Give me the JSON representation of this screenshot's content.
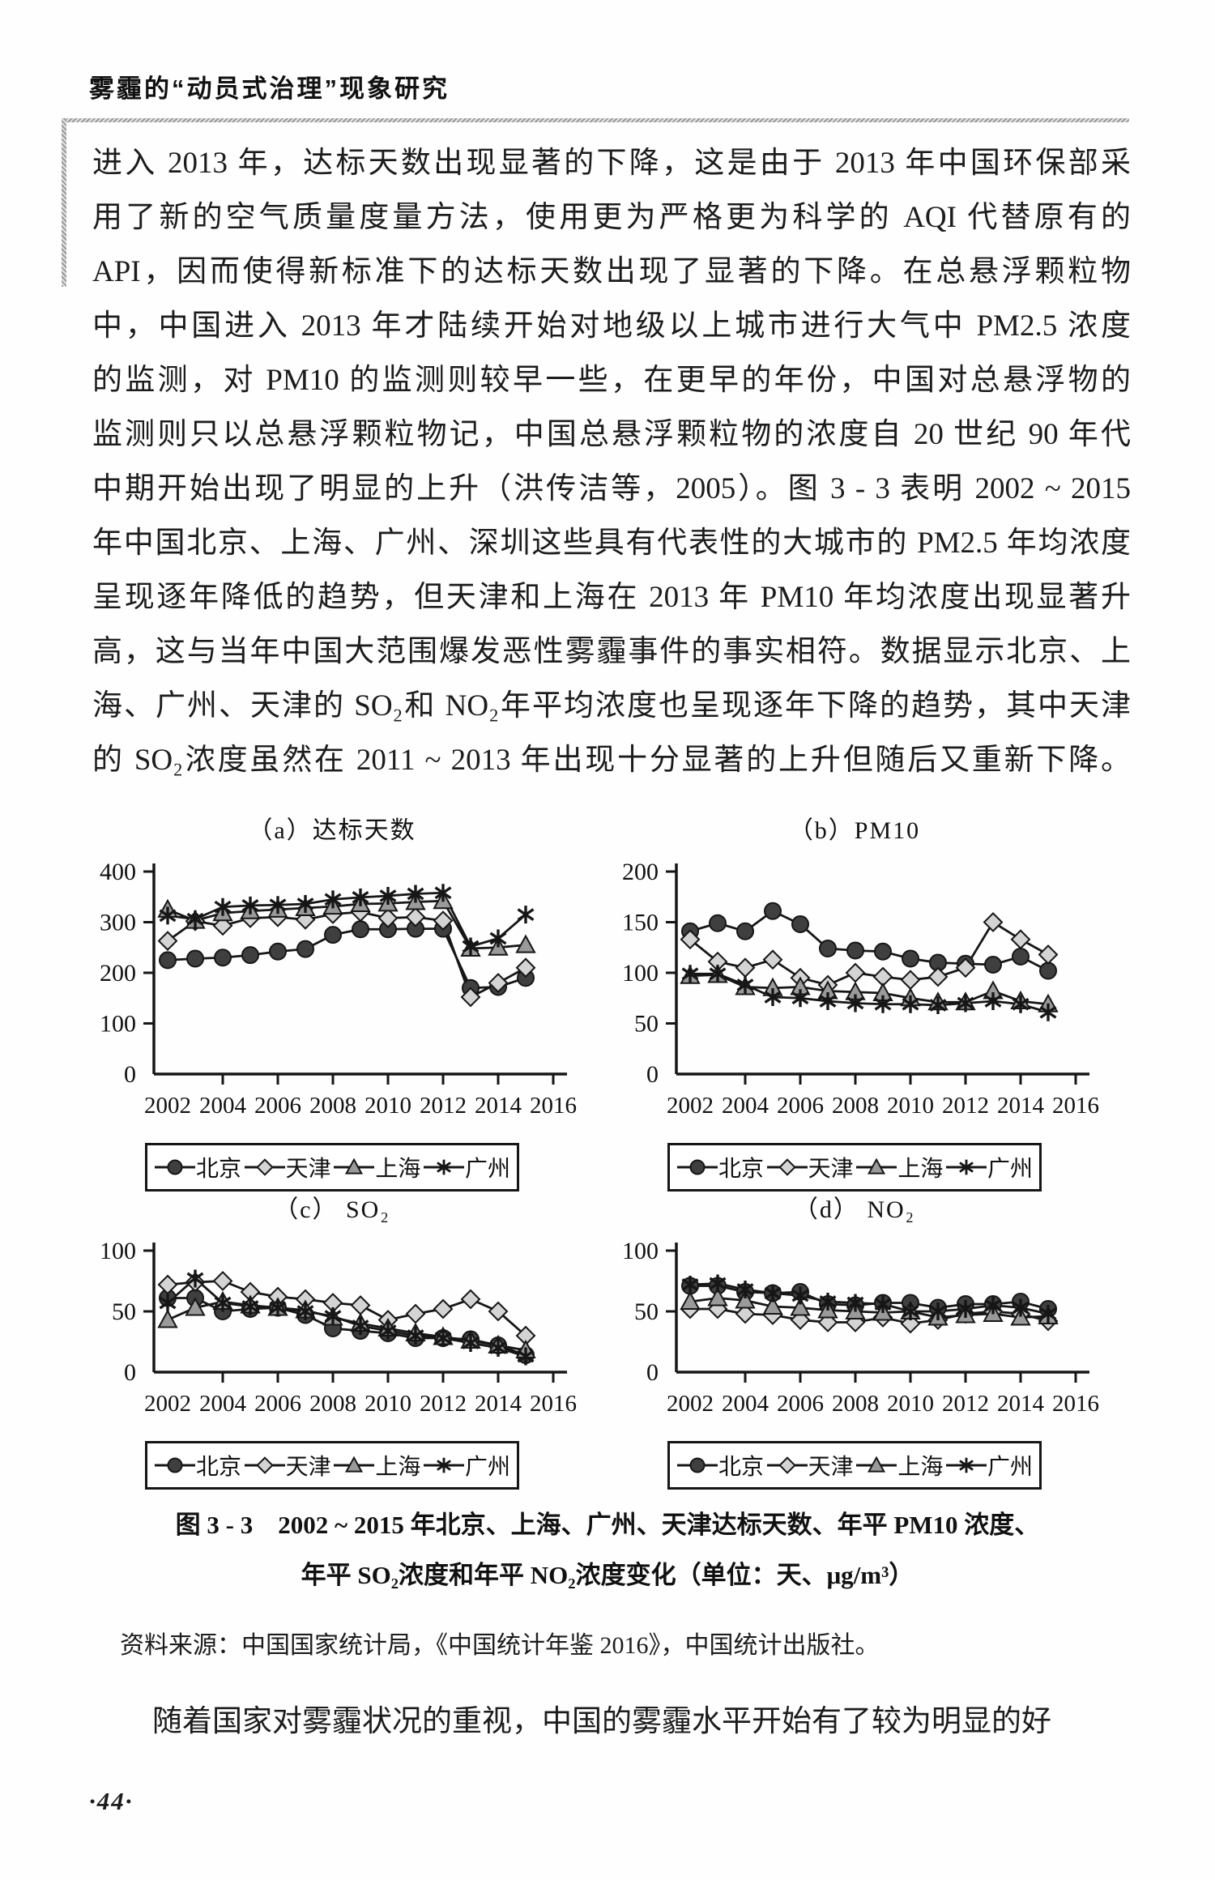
{
  "page": {
    "header_title": "雾霾的“动员式治理”现象研究",
    "page_number": "·44·"
  },
  "excerpt_paragraph": {
    "lines": [
      "进入 2013 年，达标天数出现显著的下降，这是由于 2013 年中国环保部采",
      "用了新的空气质量度量方法，使用更为严格更为科学的 AQI 代替原有的",
      "API，因而使得新标准下的达标天数出现了显著的下降。在总悬浮颗粒物",
      "中，中国进入 2013 年才陆续开始对地级以上城市进行大气中 PM2.5 浓度",
      "的监测，对 PM10 的监测则较早一些，在更早的年份，中国对总悬浮物的",
      "监测则只以总悬浮颗粒物记，中国总悬浮颗粒物的浓度自 20 世纪 90 年代",
      "中期开始出现了明显的上升（洪传洁等，2005）。图 3 - 3 表明 2002 ~ 2015",
      "年中国北京、上海、广州、深圳这些具有代表性的大城市的 PM2.5 年均浓度",
      "呈现逐年降低的趋势，但天津和上海在 2013 年 PM10 年均浓度出现显著升",
      "高，这与当年中国大范围爆发恶性雾霾事件的事实相符。数据显示北京、上",
      "海、广州、天津的 SO₂和 NO₂年平均浓度也呈现逐年下降的趋势，其中天津",
      "的 SO₂浓度虽然在 2011 ~ 2013 年出现十分显著的上升但随后又重新下降。"
    ]
  },
  "figure": {
    "caption_line1": "图 3 - 3　2002 ~ 2015 年北京、上海、广州、天津达标天数、年平 PM10 浓度、",
    "caption_line2": "年平 SO₂浓度和年平 NO₂浓度变化（单位：天、μg/m³）",
    "source": "资料来源：中国国家统计局，《中国统计年鉴 2016》，中国统计出版社。"
  },
  "body_paragraph": "随着国家对雾霾状况的重视，中国的雾霾水平开始有了较为明显的好",
  "chart_data": [
    {
      "id": "a",
      "type": "line",
      "title": "（a）达标天数",
      "ylim": [
        0,
        400
      ],
      "yticks": [
        0,
        100,
        200,
        300,
        400
      ],
      "x": [
        2002,
        2003,
        2004,
        2005,
        2006,
        2007,
        2008,
        2009,
        2010,
        2011,
        2012,
        2013,
        2014,
        2015
      ],
      "xticks": [
        2002,
        2004,
        2006,
        2008,
        2010,
        2012,
        2014,
        2016
      ],
      "legend_position": "bottom",
      "grid": false,
      "series": [
        {
          "name": "北京",
          "city_id": "beijing",
          "marker": "circle",
          "values": [
            225,
            228,
            230,
            235,
            242,
            247,
            275,
            286,
            286,
            287,
            287,
            170,
            172,
            190
          ]
        },
        {
          "name": "天津",
          "city_id": "tianjin",
          "marker": "diamond",
          "values": [
            263,
            302,
            293,
            308,
            310,
            305,
            316,
            320,
            308,
            310,
            303,
            152,
            180,
            210
          ]
        },
        {
          "name": "上海",
          "city_id": "shanghai",
          "marker": "triangle",
          "values": [
            325,
            303,
            318,
            322,
            325,
            328,
            331,
            336,
            337,
            340,
            342,
            248,
            250,
            255
          ]
        },
        {
          "name": "广州",
          "city_id": "guangzhou",
          "marker": "star",
          "values": [
            313,
            306,
            330,
            333,
            334,
            336,
            345,
            349,
            352,
            356,
            358,
            252,
            268,
            315
          ]
        }
      ]
    },
    {
      "id": "b",
      "type": "line",
      "title": "（b）PM10",
      "ylim": [
        0,
        200
      ],
      "yticks": [
        0,
        50,
        100,
        150,
        200
      ],
      "x": [
        2002,
        2003,
        2004,
        2005,
        2006,
        2007,
        2008,
        2009,
        2010,
        2011,
        2012,
        2013,
        2014,
        2015
      ],
      "xticks": [
        2002,
        2004,
        2006,
        2008,
        2010,
        2012,
        2014,
        2016
      ],
      "legend_position": "bottom",
      "grid": false,
      "series": [
        {
          "name": "北京",
          "city_id": "beijing",
          "marker": "circle",
          "values": [
            141,
            149,
            141,
            161,
            148,
            124,
            122,
            121,
            114,
            110,
            109,
            108,
            116,
            102
          ]
        },
        {
          "name": "天津",
          "city_id": "tianjin",
          "marker": "diamond",
          "values": [
            133,
            111,
            105,
            113,
            95,
            88,
            100,
            96,
            93,
            96,
            105,
            150,
            133,
            118
          ]
        },
        {
          "name": "上海",
          "city_id": "shanghai",
          "marker": "triangle",
          "values": [
            97,
            98,
            86,
            85,
            86,
            82,
            81,
            80,
            75,
            71,
            71,
            82,
            72,
            69
          ]
        },
        {
          "name": "广州",
          "city_id": "guangzhou",
          "marker": "star",
          "values": [
            99,
            99,
            88,
            76,
            75,
            72,
            70,
            69,
            69,
            68,
            70,
            72,
            69,
            61
          ]
        }
      ]
    },
    {
      "id": "c",
      "type": "line",
      "title": "（c） SO₂",
      "ylim": [
        0,
        100
      ],
      "yticks": [
        0,
        50,
        100
      ],
      "x": [
        2002,
        2003,
        2004,
        2005,
        2006,
        2007,
        2008,
        2009,
        2010,
        2011,
        2012,
        2013,
        2014,
        2015
      ],
      "xticks": [
        2002,
        2004,
        2006,
        2008,
        2010,
        2012,
        2014,
        2016
      ],
      "legend_position": "bottom",
      "grid": false,
      "series": [
        {
          "name": "北京",
          "city_id": "beijing",
          "marker": "circle",
          "values": [
            61,
            61,
            50,
            52,
            53,
            47,
            36,
            34,
            32,
            28,
            28,
            27,
            22,
            14
          ]
        },
        {
          "name": "天津",
          "city_id": "tianjin",
          "marker": "diamond",
          "values": [
            72,
            74,
            75,
            66,
            62,
            60,
            57,
            55,
            43,
            48,
            52,
            60,
            50,
            30
          ]
        },
        {
          "name": "上海",
          "city_id": "shanghai",
          "marker": "triangle",
          "values": [
            43,
            53,
            58,
            55,
            53,
            51,
            45,
            40,
            36,
            32,
            29,
            26,
            22,
            18
          ]
        },
        {
          "name": "广州",
          "city_id": "guangzhou",
          "marker": "star",
          "values": [
            57,
            77,
            57,
            54,
            53,
            50,
            46,
            38,
            34,
            30,
            28,
            24,
            20,
            13
          ]
        }
      ]
    },
    {
      "id": "d",
      "type": "line",
      "title": "（d） NO₂",
      "ylim": [
        0,
        100
      ],
      "yticks": [
        0,
        50,
        100
      ],
      "x": [
        2002,
        2003,
        2004,
        2005,
        2006,
        2007,
        2008,
        2009,
        2010,
        2011,
        2012,
        2013,
        2014,
        2015
      ],
      "xticks": [
        2002,
        2004,
        2006,
        2008,
        2010,
        2012,
        2014,
        2016
      ],
      "legend_position": "bottom",
      "grid": false,
      "series": [
        {
          "name": "北京",
          "city_id": "beijing",
          "marker": "circle",
          "values": [
            71,
            71,
            66,
            65,
            66,
            56,
            55,
            57,
            57,
            53,
            56,
            56,
            58,
            52
          ]
        },
        {
          "name": "天津",
          "city_id": "tianjin",
          "marker": "diamond",
          "values": [
            52,
            52,
            48,
            47,
            43,
            41,
            41,
            45,
            40,
            43,
            48,
            50,
            48,
            42
          ]
        },
        {
          "name": "上海",
          "city_id": "shanghai",
          "marker": "triangle",
          "values": [
            58,
            61,
            59,
            54,
            53,
            51,
            50,
            49,
            50,
            45,
            47,
            48,
            45,
            46
          ]
        },
        {
          "name": "广州",
          "city_id": "guangzhou",
          "marker": "star",
          "values": [
            72,
            73,
            68,
            65,
            63,
            58,
            57,
            56,
            50,
            50,
            52,
            55,
            53,
            48
          ]
        }
      ]
    }
  ],
  "chart_style": {
    "line_color": "#161616",
    "circle_fill": "#3f3f3f",
    "diamond_fill": "#d4d4d4",
    "triangle_fill": "#9a9a9a"
  }
}
